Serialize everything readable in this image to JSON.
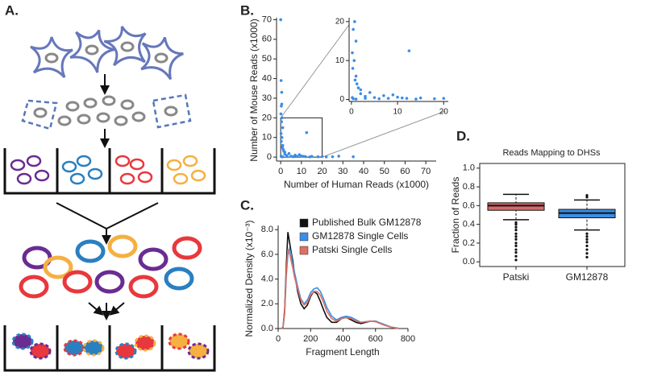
{
  "diagram_label": "A.",
  "chart_data": [
    {
      "type": "scatter",
      "panel_label": "B.",
      "x_label": "Number of Human Reads (x1000)",
      "y_label": "Number of Mouse Reads  (x1000)",
      "color": "#3a8ee6",
      "x": [
        0,
        0.2,
        0.5,
        0.3,
        0.1,
        0.4,
        1,
        0.2,
        0.6,
        0.3,
        0.8,
        1.5,
        2,
        3,
        5,
        7,
        10,
        12,
        15,
        18,
        20,
        22,
        25,
        28,
        35,
        1,
        2,
        4,
        8,
        11,
        0.5,
        0.7,
        1.2,
        3,
        6,
        9,
        14,
        0.2,
        0.4,
        1,
        12.5
      ],
      "y": [
        70,
        39,
        33,
        26,
        22,
        18,
        15,
        12,
        10,
        8,
        5,
        3,
        1.5,
        0.8,
        0.5,
        1,
        0.6,
        0.3,
        0.4,
        0.2,
        0.3,
        0.1,
        0.2,
        0.5,
        0.2,
        6,
        2.5,
        1.8,
        0.3,
        0.4,
        27,
        20,
        4,
        0.3,
        0.2,
        1.2,
        0.1,
        0.5,
        0.2,
        0.1,
        12.5
      ],
      "xlim": [
        -2,
        75
      ],
      "ylim": [
        -2,
        71
      ],
      "xticks": [
        0,
        10,
        20,
        30,
        40,
        50,
        60,
        70
      ],
      "yticks": [
        0,
        10,
        20,
        30,
        40,
        50,
        60,
        70
      ],
      "inset": {
        "xlim": [
          -0.5,
          21
        ],
        "ylim": [
          -0.5,
          21
        ],
        "xticks": [
          0,
          10,
          20
        ],
        "yticks": [
          0,
          10,
          20
        ]
      }
    },
    {
      "type": "line",
      "panel_label": "C.",
      "x_label": "Fragment Length",
      "y_label": "Normalized Density (x10⁻³)",
      "x": [
        20,
        30,
        40,
        50,
        60,
        70,
        80,
        90,
        100,
        120,
        140,
        160,
        180,
        200,
        220,
        240,
        260,
        280,
        300,
        330,
        360,
        390,
        420,
        450,
        480,
        510,
        540,
        570,
        600,
        630,
        660,
        700,
        740
      ],
      "series": [
        {
          "name": "Published Bulk GM12878",
          "color": "#111111",
          "values": [
            0,
            0.1,
            1.5,
            5.0,
            7.8,
            7.0,
            6.2,
            5.5,
            4.5,
            3.0,
            2.0,
            1.6,
            1.9,
            2.6,
            3.0,
            2.8,
            2.2,
            1.5,
            0.9,
            0.5,
            0.5,
            0.8,
            0.9,
            0.7,
            0.5,
            0.4,
            0.5,
            0.6,
            0.6,
            0.4,
            0.25,
            0.1,
            0.02
          ]
        },
        {
          "name": "GM12878 Single Cells",
          "color": "#3a8ee6",
          "values": [
            0,
            0.1,
            1.2,
            4.2,
            6.0,
            6.5,
            6.0,
            5.2,
            4.6,
            3.4,
            2.4,
            2.0,
            2.3,
            2.9,
            3.2,
            3.3,
            3.0,
            2.4,
            1.7,
            1.0,
            0.7,
            0.9,
            1.0,
            0.9,
            0.7,
            0.5,
            0.55,
            0.6,
            0.6,
            0.45,
            0.3,
            0.1,
            0.02
          ]
        },
        {
          "name": "Patski Single Cells",
          "color": "#e07060",
          "values": [
            0,
            0.1,
            1.3,
            4.5,
            6.4,
            6.1,
            5.5,
            4.9,
            4.2,
            3.2,
            2.3,
            1.9,
            2.1,
            2.7,
            3.0,
            3.0,
            2.7,
            2.1,
            1.4,
            0.8,
            0.6,
            0.8,
            0.9,
            0.8,
            0.6,
            0.5,
            0.55,
            0.6,
            0.55,
            0.4,
            0.25,
            0.1,
            0.02
          ]
        }
      ],
      "xlim": [
        0,
        800
      ],
      "ylim": [
        0,
        8.6
      ],
      "xticks": [
        0,
        200,
        400,
        600,
        800
      ],
      "yticks": [
        {
          "value": 0,
          "label": "0.0"
        },
        {
          "value": 2,
          "label": "2.0"
        },
        {
          "value": 4,
          "label": "4.0"
        },
        {
          "value": 6,
          "label": "6.0"
        },
        {
          "value": 8,
          "label": "8.0"
        }
      ]
    },
    {
      "type": "box",
      "panel_label": "D.",
      "title": "Reads Mapping to DHSs",
      "y_label": "Fraction of Reads",
      "categories": [
        "Patski",
        "GM12878"
      ],
      "series": [
        {
          "color": "#d46a6a",
          "whisker_low": 0.45,
          "q1": 0.55,
          "median": 0.6,
          "q3": 0.63,
          "whisker_high": 0.72,
          "outliers": [
            0.42,
            0.4,
            0.37,
            0.34,
            0.3,
            0.27,
            0.24,
            0.2,
            0.17,
            0.13,
            0.1,
            0.06,
            0.02
          ]
        },
        {
          "color": "#3a8ee6",
          "whisker_low": 0.34,
          "q1": 0.47,
          "median": 0.52,
          "q3": 0.56,
          "whisker_high": 0.66,
          "outliers": [
            0.71,
            0.69,
            0.3,
            0.27,
            0.24,
            0.21,
            0.17,
            0.13,
            0.09,
            0.05
          ]
        }
      ],
      "ylim": [
        -0.05,
        1.05
      ],
      "yticks": [
        {
          "value": 0,
          "label": "0.0"
        },
        {
          "value": 0.2,
          "label": "0.2"
        },
        {
          "value": 0.4,
          "label": "0.4"
        },
        {
          "value": 0.6,
          "label": "0.6"
        },
        {
          "value": 0.8,
          "label": "0.8"
        },
        {
          "value": 1,
          "label": "1.0"
        }
      ]
    }
  ]
}
